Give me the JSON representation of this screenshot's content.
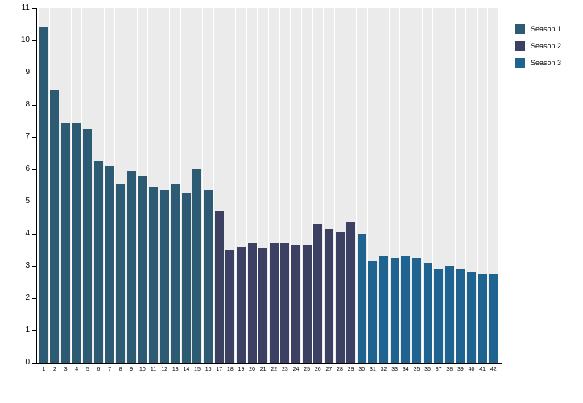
{
  "chart_data": {
    "type": "bar",
    "title": "",
    "xlabel": "",
    "ylabel": "",
    "ylim": [
      0,
      11
    ],
    "yticks": [
      0,
      1,
      2,
      3,
      4,
      5,
      6,
      7,
      8,
      9,
      10,
      11
    ],
    "grid": false,
    "plot_background_stripe_color": "#ebebeb",
    "axis_color": "#000000",
    "legend_position": "top-right",
    "categories": [
      "1",
      "2",
      "3",
      "4",
      "5",
      "6",
      "7",
      "8",
      "9",
      "10",
      "11",
      "12",
      "13",
      "14",
      "15",
      "16",
      "17",
      "18",
      "19",
      "20",
      "21",
      "22",
      "23",
      "24",
      "25",
      "26",
      "27",
      "28",
      "29",
      "30",
      "31",
      "32",
      "33",
      "34",
      "35",
      "36",
      "37",
      "38",
      "39",
      "40",
      "41",
      "42"
    ],
    "series": [
      {
        "name": "Season 1",
        "color": "#2e5b74",
        "start_category": "1",
        "values": [
          10.4,
          8.45,
          7.45,
          7.45,
          7.25,
          6.25,
          6.1,
          5.55,
          5.95,
          5.8,
          5.45,
          5.35,
          5.55,
          5.25,
          6.0,
          5.35
        ]
      },
      {
        "name": "Season 2",
        "color": "#3c4063",
        "start_category": "17",
        "values": [
          4.7,
          3.5,
          3.6,
          3.7,
          3.55,
          3.7,
          3.7,
          3.65,
          3.65,
          4.3,
          4.15,
          4.05,
          4.35
        ]
      },
      {
        "name": "Season 3",
        "color": "#1f6391",
        "start_category": "30",
        "values": [
          4.0,
          3.15,
          3.3,
          3.25,
          3.3,
          3.25,
          3.1,
          2.9,
          3.0,
          2.9,
          2.8,
          2.75,
          2.75
        ]
      }
    ]
  },
  "legend": {
    "items": [
      {
        "label": "Season 1",
        "color": "#2e5b74"
      },
      {
        "label": "Season 2",
        "color": "#3c4063"
      },
      {
        "label": "Season 3",
        "color": "#1f6391"
      }
    ]
  }
}
